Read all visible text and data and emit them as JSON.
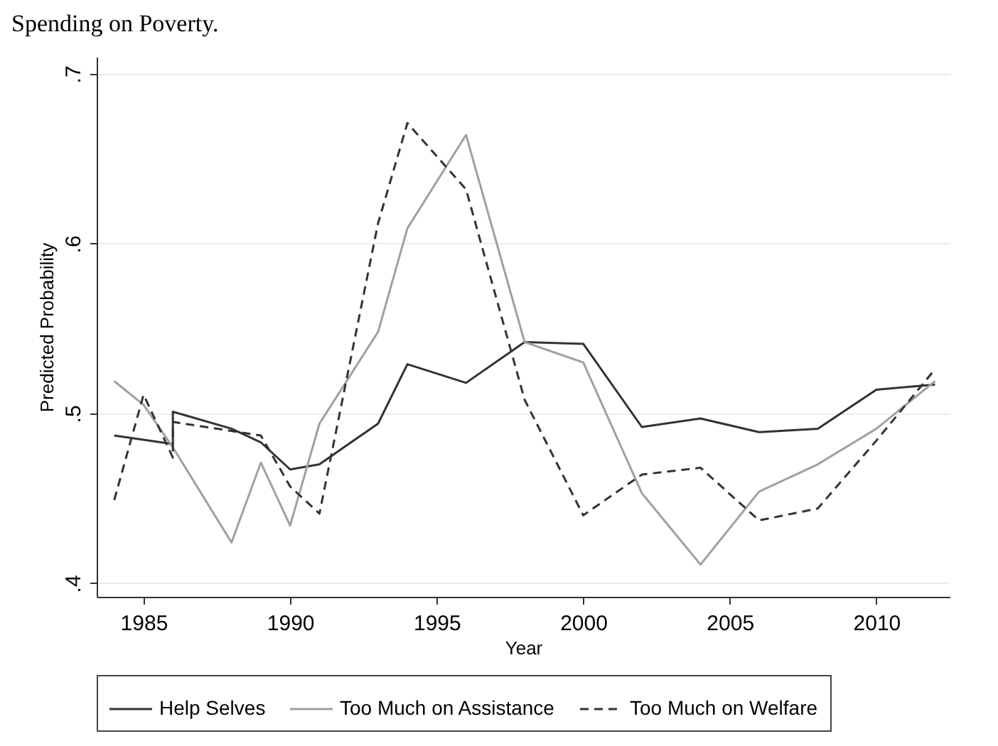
{
  "chart_data": {
    "type": "line",
    "title": "Spending on Poverty.",
    "xlabel": "Year",
    "ylabel": "Predicted Probability",
    "xlim": [
      1983.4,
      2012.5
    ],
    "xticks": [
      1985,
      1990,
      1995,
      2000,
      2005,
      2010
    ],
    "ylim": [
      0.392,
      0.71
    ],
    "yticks": [
      {
        "value": 0.4,
        "label": ".4"
      },
      {
        "value": 0.5,
        "label": ".5"
      },
      {
        "value": 0.6,
        "label": ".6"
      },
      {
        "value": 0.7,
        "label": ".7"
      }
    ],
    "grid": "y",
    "legend": "bottom",
    "marker": "none",
    "series": [
      {
        "name": "Help Selves",
        "color": "#333333",
        "line_style": "solid",
        "x": [
          1984,
          1986,
          1986,
          1988,
          1989,
          1990,
          1991,
          1993,
          1994,
          1996,
          1998,
          2000,
          2002,
          2004,
          2006,
          2008,
          2010,
          2012
        ],
        "values": [
          0.487,
          0.482,
          0.501,
          0.491,
          0.483,
          0.467,
          0.47,
          0.494,
          0.529,
          0.518,
          0.542,
          0.541,
          0.492,
          0.497,
          0.489,
          0.491,
          0.514,
          0.517
        ]
      },
      {
        "name": "Too Much on Assistance",
        "color": "#a0a0a0",
        "line_style": "solid",
        "x": [
          1984,
          1985,
          1986,
          1988,
          1989,
          1990,
          1991,
          1993,
          1994,
          1996,
          1998,
          2000,
          2002,
          2004,
          2006,
          2008,
          2010,
          2012
        ],
        "values": [
          0.519,
          0.505,
          0.48,
          0.424,
          0.471,
          0.434,
          0.494,
          0.548,
          0.609,
          0.664,
          0.542,
          0.53,
          0.453,
          0.411,
          0.454,
          0.47,
          0.491,
          0.519
        ]
      },
      {
        "name": "Too Much on Welfare",
        "color": "#333333",
        "line_style": "dashed",
        "x": [
          1984,
          1985,
          1986,
          1986,
          1989,
          1990,
          1991,
          1993,
          1994,
          1996,
          1998,
          2000,
          2002,
          2004,
          2006,
          2008,
          2010,
          2012
        ],
        "values": [
          0.449,
          0.511,
          0.474,
          0.495,
          0.487,
          0.457,
          0.441,
          0.612,
          0.671,
          0.632,
          0.508,
          0.44,
          0.464,
          0.468,
          0.437,
          0.444,
          0.484,
          0.526
        ]
      }
    ]
  }
}
